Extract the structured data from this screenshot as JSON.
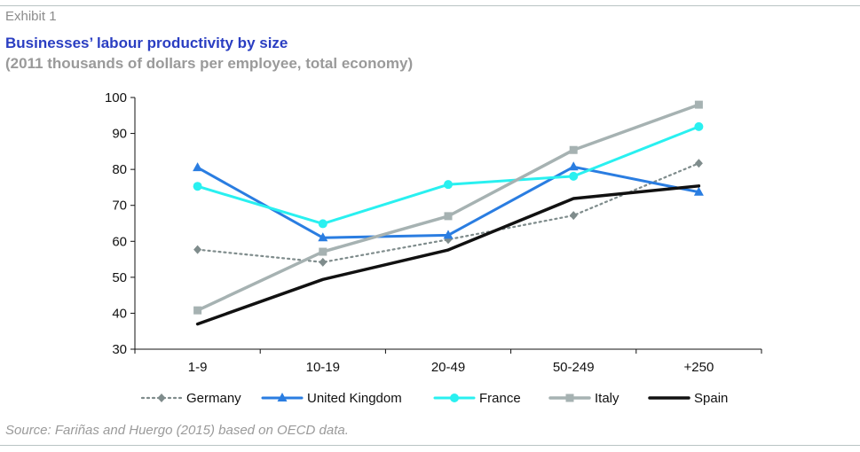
{
  "header": {
    "exhibit": "Exhibit 1",
    "title": "Businesses’ labour productivity by size",
    "subtitle": "(2011 thousands of dollars per employee, total economy)"
  },
  "footer": {
    "source": "Source: Fariñas and Huergo (2015) based on OECD data."
  },
  "colors": {
    "title": "#2a3ec2",
    "subtitle": "#9a9a9a",
    "rule": "#b9c4c4"
  },
  "chart_data": {
    "type": "line",
    "title": "Businesses’ labour productivity by size",
    "subtitle": "(2011 thousands of dollars per employee, total economy)",
    "xlabel": "",
    "ylabel": "",
    "categories": [
      "1-9",
      "10-19",
      "20-49",
      "50-249",
      "+250"
    ],
    "ylim": [
      30,
      100
    ],
    "yticks": [
      30,
      40,
      50,
      60,
      70,
      80,
      90,
      100
    ],
    "grid": false,
    "legend_position": "bottom",
    "series": [
      {
        "name": "Germany",
        "values": [
          57.7,
          54.2,
          60.5,
          67.2,
          81.7
        ],
        "color": "#7f8c8c",
        "dash": "2 4",
        "marker": "diamond",
        "width": 2.2
      },
      {
        "name": "United Kingdom",
        "values": [
          80.5,
          61.0,
          61.7,
          80.7,
          73.7
        ],
        "color": "#2a7de1",
        "dash": "",
        "marker": "triangle",
        "width": 3
      },
      {
        "name": "France",
        "values": [
          75.3,
          64.9,
          75.8,
          78.1,
          91.9
        ],
        "color": "#29f0f0",
        "dash": "",
        "marker": "circle",
        "width": 3
      },
      {
        "name": "Italy",
        "values": [
          40.8,
          57.1,
          67.0,
          85.4,
          98.0
        ],
        "color": "#a6b2b2",
        "dash": "",
        "marker": "square",
        "width": 3.5
      },
      {
        "name": "Spain",
        "values": [
          37.0,
          49.4,
          57.6,
          71.9,
          75.4
        ],
        "color": "#111111",
        "dash": "",
        "marker": "none",
        "width": 3.5
      }
    ]
  }
}
